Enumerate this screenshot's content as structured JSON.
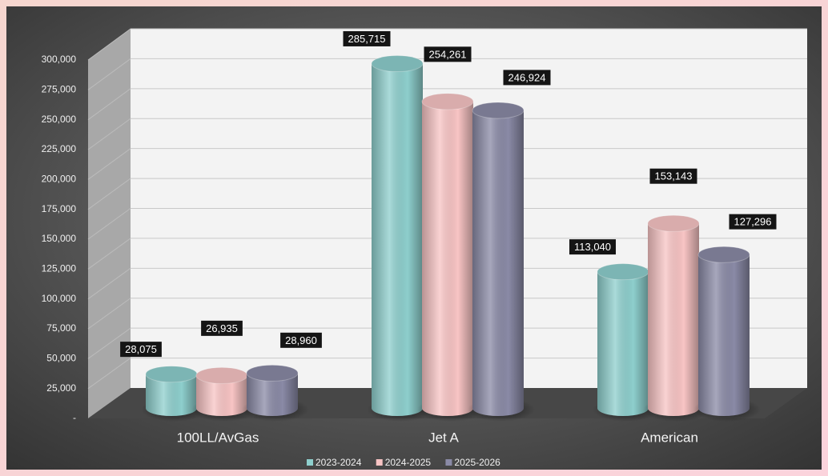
{
  "chart_data": {
    "type": "bar",
    "categories": [
      "100LL/AvGas",
      "Jet A",
      "American"
    ],
    "series": [
      {
        "name": "2023-2024",
        "color": "#8ecfcd",
        "values": [
          28075,
          285715,
          113040
        ],
        "value_labels": [
          "28,075",
          "285,715",
          "113,040"
        ]
      },
      {
        "name": "2024-2025",
        "color": "#f8c4c4",
        "values": [
          26935,
          254261,
          153143
        ],
        "value_labels": [
          "26,935",
          "254,261",
          "153,143"
        ]
      },
      {
        "name": "2025-2026",
        "color": "#8a8aa6",
        "values": [
          28960,
          246924,
          127296
        ],
        "value_labels": [
          "28,960",
          "246,924",
          "127,296"
        ]
      }
    ],
    "ylim": [
      0,
      300000
    ],
    "yticks": [
      {
        "value": 0,
        "label": "-"
      },
      {
        "value": 25000,
        "label": "25,000"
      },
      {
        "value": 50000,
        "label": "50,000"
      },
      {
        "value": 75000,
        "label": "75,000"
      },
      {
        "value": 100000,
        "label": "100,000"
      },
      {
        "value": 125000,
        "label": "125,000"
      },
      {
        "value": 150000,
        "label": "150,000"
      },
      {
        "value": 175000,
        "label": "175,000"
      },
      {
        "value": 200000,
        "label": "200,000"
      },
      {
        "value": 225000,
        "label": "225,000"
      },
      {
        "value": 250000,
        "label": "250,000"
      },
      {
        "value": 275000,
        "label": "275,000"
      },
      {
        "value": 300000,
        "label": "300,000"
      }
    ],
    "grid": true,
    "legend": "bottom"
  }
}
